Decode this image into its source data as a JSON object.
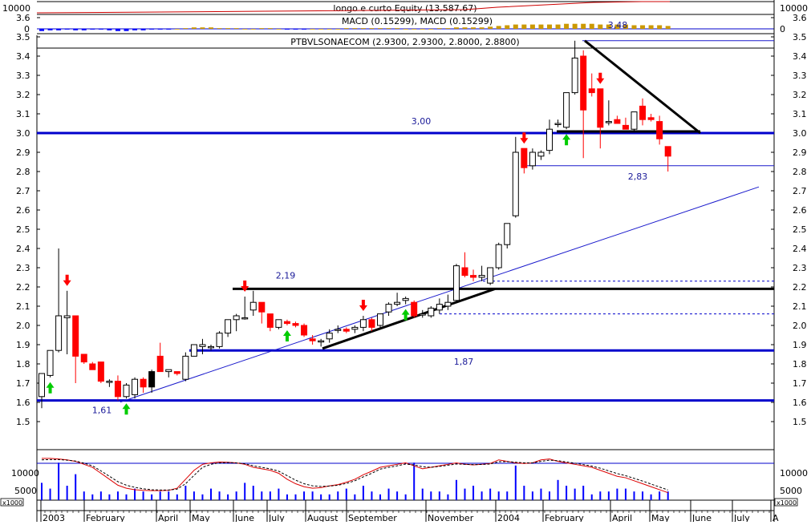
{
  "panels": {
    "equity_title": "longo e curto Equity (13,587.67)",
    "macd_title": "MACD (0.15299), MACD (0.15299)",
    "price_title": "PTBVLSONAECOM (2.9300, 2.9300, 2.8000, 2.8800)",
    "top_ticks": [
      "10000",
      "0"
    ],
    "volume_ticks": [
      "10000",
      "5000"
    ],
    "volume_unit": "x1000"
  },
  "colors": {
    "up_candle": "#ffffff",
    "down_candle": "#ff0000",
    "black_candle": "#000000",
    "trend_blue": "#0000cc",
    "thin_blue": "#1a1acc",
    "up_arrow": "#00cc00",
    "down_arrow": "#ff0000",
    "oscillator_red": "#dd0000",
    "signal_black": "#000000"
  },
  "chart_data": {
    "type": "candlestick",
    "title": "PTBVLSONAECOM (2.9300, 2.9300, 2.8000, 2.8800)",
    "ylim": [
      1.4,
      3.65
    ],
    "y_ticks": [
      "1.5",
      "1.6",
      "1.7",
      "1.8",
      "1.9",
      "2.0",
      "2.1",
      "2.2",
      "2.3",
      "2.4",
      "2.5",
      "2.6",
      "2.7",
      "2.8",
      "2.9",
      "3.0",
      "3.1",
      "3.2",
      "3.3",
      "3.4",
      "3.5",
      "3.6"
    ],
    "x_labels": [
      "2003",
      "February",
      "April",
      "May",
      "June",
      "July",
      "August",
      "September",
      "November",
      "2004",
      "February",
      "April",
      "May",
      "June",
      "July",
      "A"
    ],
    "candles": [
      {
        "o": 1.63,
        "h": 1.75,
        "l": 1.57,
        "c": 1.75
      },
      {
        "o": 1.74,
        "h": 1.87,
        "l": 1.73,
        "c": 1.87
      },
      {
        "o": 1.87,
        "h": 2.4,
        "l": 1.86,
        "c": 2.05
      },
      {
        "o": 2.04,
        "h": 2.18,
        "l": 1.85,
        "c": 2.05
      },
      {
        "o": 2.05,
        "h": 2.05,
        "l": 1.7,
        "c": 1.84
      },
      {
        "o": 1.85,
        "h": 1.85,
        "l": 1.8,
        "c": 1.81
      },
      {
        "o": 1.8,
        "h": 1.81,
        "l": 1.78,
        "c": 1.77
      },
      {
        "o": 1.81,
        "h": 1.81,
        "l": 1.7,
        "c": 1.71
      },
      {
        "o": 1.71,
        "h": 1.72,
        "l": 1.68,
        "c": 1.71
      },
      {
        "o": 1.71,
        "h": 1.74,
        "l": 1.61,
        "c": 1.63
      },
      {
        "o": 1.63,
        "h": 1.7,
        "l": 1.62,
        "c": 1.69
      },
      {
        "o": 1.64,
        "h": 1.73,
        "l": 1.62,
        "c": 1.72
      },
      {
        "o": 1.72,
        "h": 1.73,
        "l": 1.65,
        "c": 1.68
      },
      {
        "o": 1.68,
        "h": 1.77,
        "l": 1.65,
        "c": 1.76
      },
      {
        "o": 1.84,
        "h": 1.91,
        "l": 1.77,
        "c": 1.76
      },
      {
        "o": 1.76,
        "h": 1.77,
        "l": 1.73,
        "c": 1.77
      },
      {
        "o": 1.76,
        "h": 1.76,
        "l": 1.74,
        "c": 1.75
      },
      {
        "o": 1.72,
        "h": 1.86,
        "l": 1.71,
        "c": 1.84
      },
      {
        "o": 1.84,
        "h": 1.9,
        "l": 1.84,
        "c": 1.9
      },
      {
        "o": 1.89,
        "h": 1.93,
        "l": 1.85,
        "c": 1.9
      },
      {
        "o": 1.89,
        "h": 1.9,
        "l": 1.87,
        "c": 1.89
      },
      {
        "o": 1.89,
        "h": 1.97,
        "l": 1.88,
        "c": 1.96
      },
      {
        "o": 1.96,
        "h": 2.03,
        "l": 1.94,
        "c": 2.03
      },
      {
        "o": 2.03,
        "h": 2.06,
        "l": 1.97,
        "c": 2.05
      },
      {
        "o": 2.04,
        "h": 2.15,
        "l": 2.03,
        "c": 2.04
      },
      {
        "o": 2.08,
        "h": 2.18,
        "l": 2.05,
        "c": 2.12
      },
      {
        "o": 2.12,
        "h": 2.12,
        "l": 2.01,
        "c": 2.07
      },
      {
        "o": 2.06,
        "h": 2.06,
        "l": 1.97,
        "c": 1.99
      },
      {
        "o": 1.99,
        "h": 2.03,
        "l": 1.98,
        "c": 2.03
      },
      {
        "o": 2.02,
        "h": 2.03,
        "l": 2.0,
        "c": 2.01
      },
      {
        "o": 2.01,
        "h": 2.02,
        "l": 1.99,
        "c": 2.0
      },
      {
        "o": 2.0,
        "h": 2.01,
        "l": 1.94,
        "c": 1.95
      },
      {
        "o": 1.93,
        "h": 1.95,
        "l": 1.9,
        "c": 1.92
      },
      {
        "o": 1.92,
        "h": 1.93,
        "l": 1.89,
        "c": 1.92
      },
      {
        "o": 1.93,
        "h": 1.98,
        "l": 1.91,
        "c": 1.96
      },
      {
        "o": 1.98,
        "h": 2.0,
        "l": 1.96,
        "c": 1.98
      },
      {
        "o": 1.98,
        "h": 1.99,
        "l": 1.96,
        "c": 1.97
      },
      {
        "o": 1.98,
        "h": 2.0,
        "l": 1.96,
        "c": 1.99
      },
      {
        "o": 1.99,
        "h": 2.05,
        "l": 1.97,
        "c": 2.03
      },
      {
        "o": 2.03,
        "h": 2.04,
        "l": 1.97,
        "c": 1.99
      },
      {
        "o": 2.0,
        "h": 2.06,
        "l": 1.98,
        "c": 2.06
      },
      {
        "o": 2.07,
        "h": 2.12,
        "l": 2.05,
        "c": 2.11
      },
      {
        "o": 2.11,
        "h": 2.17,
        "l": 2.1,
        "c": 2.12
      },
      {
        "o": 2.13,
        "h": 2.15,
        "l": 2.11,
        "c": 2.14
      },
      {
        "o": 2.12,
        "h": 2.13,
        "l": 2.04,
        "c": 2.05
      },
      {
        "o": 2.06,
        "h": 2.08,
        "l": 2.04,
        "c": 2.06
      },
      {
        "o": 2.05,
        "h": 2.1,
        "l": 2.04,
        "c": 2.09
      },
      {
        "o": 2.08,
        "h": 2.14,
        "l": 2.06,
        "c": 2.11
      },
      {
        "o": 2.1,
        "h": 2.16,
        "l": 2.08,
        "c": 2.12
      },
      {
        "o": 2.13,
        "h": 2.32,
        "l": 2.12,
        "c": 2.31
      },
      {
        "o": 2.3,
        "h": 2.38,
        "l": 2.25,
        "c": 2.26
      },
      {
        "o": 2.26,
        "h": 2.29,
        "l": 2.23,
        "c": 2.25
      },
      {
        "o": 2.25,
        "h": 2.31,
        "l": 2.23,
        "c": 2.26
      },
      {
        "o": 2.22,
        "h": 2.28,
        "l": 2.21,
        "c": 2.3
      },
      {
        "o": 2.3,
        "h": 2.43,
        "l": 2.29,
        "c": 2.42
      },
      {
        "o": 2.42,
        "h": 2.53,
        "l": 2.4,
        "c": 2.53
      },
      {
        "o": 2.57,
        "h": 2.98,
        "l": 2.56,
        "c": 2.9
      },
      {
        "o": 2.92,
        "h": 2.92,
        "l": 2.79,
        "c": 2.82
      },
      {
        "o": 2.83,
        "h": 2.92,
        "l": 2.81,
        "c": 2.9
      },
      {
        "o": 2.88,
        "h": 2.91,
        "l": 2.86,
        "c": 2.9
      },
      {
        "o": 2.91,
        "h": 3.07,
        "l": 2.89,
        "c": 3.02
      },
      {
        "o": 3.05,
        "h": 3.07,
        "l": 3.03,
        "c": 3.05
      },
      {
        "o": 3.03,
        "h": 3.21,
        "l": 3.02,
        "c": 3.21
      },
      {
        "o": 3.21,
        "h": 3.48,
        "l": 3.2,
        "c": 3.39
      },
      {
        "o": 3.4,
        "h": 3.43,
        "l": 2.87,
        "c": 3.12
      },
      {
        "o": 3.23,
        "h": 3.31,
        "l": 3.19,
        "c": 3.21
      },
      {
        "o": 3.23,
        "h": 3.23,
        "l": 2.92,
        "c": 3.03
      },
      {
        "o": 3.06,
        "h": 3.17,
        "l": 3.04,
        "c": 3.06
      },
      {
        "o": 3.07,
        "h": 3.09,
        "l": 3.05,
        "c": 3.05
      },
      {
        "o": 3.04,
        "h": 3.08,
        "l": 3.03,
        "c": 3.02
      },
      {
        "o": 3.02,
        "h": 3.11,
        "l": 3.01,
        "c": 3.11
      },
      {
        "o": 3.14,
        "h": 3.18,
        "l": 3.04,
        "c": 3.07
      },
      {
        "o": 3.08,
        "h": 3.1,
        "l": 3.06,
        "c": 3.07
      },
      {
        "o": 3.06,
        "h": 3.09,
        "l": 2.94,
        "c": 2.97
      },
      {
        "o": 2.93,
        "h": 2.93,
        "l": 2.8,
        "c": 2.88
      }
    ],
    "dark_candles": [
      13
    ],
    "levels": [
      {
        "value": 3.0,
        "label": "3,00"
      },
      {
        "value": 1.61,
        "label": "1,61"
      },
      {
        "value": 1.87,
        "label": "1,87"
      },
      {
        "value": 2.19,
        "label": "2,19"
      },
      {
        "value": 3.48,
        "label": "3,48"
      },
      {
        "value": 2.83,
        "label": "2,83"
      }
    ],
    "up_arrow_bars": [
      1,
      10,
      29,
      43,
      62
    ],
    "down_arrow_bars": [
      3,
      24,
      38,
      57,
      66
    ],
    "volume": [
      6,
      4,
      13,
      5,
      9,
      3,
      2,
      3,
      2,
      3,
      2,
      4,
      3,
      2,
      3,
      3,
      2,
      5,
      3,
      2,
      4,
      3,
      2,
      3,
      6,
      5,
      3,
      3,
      4,
      2,
      2,
      3,
      3,
      2,
      2,
      3,
      4,
      2,
      5,
      3,
      2,
      4,
      3,
      2,
      13,
      4,
      3,
      3,
      2,
      7,
      4,
      5,
      3,
      4,
      3,
      3,
      12,
      5,
      3,
      4,
      3,
      7,
      5,
      4,
      5,
      2,
      3,
      3,
      4,
      4,
      3,
      3,
      2,
      3,
      3
    ],
    "volume_ylim": [
      0,
      15000
    ],
    "oscillator": [
      14000,
      14000,
      13800,
      13500,
      13000,
      12000,
      11000,
      9000,
      7000,
      5000,
      4000,
      3500,
      3300,
      3200,
      3200,
      3300,
      4000,
      7000,
      10000,
      12000,
      12500,
      12800,
      12700,
      12500,
      12000,
      11000,
      10500,
      10000,
      9000,
      7000,
      5500,
      4500,
      4000,
      4200,
      4800,
      5200,
      6000,
      7000,
      8500,
      9700,
      11000,
      11500,
      12000,
      12500,
      11500,
      10500,
      11000,
      11500,
      12000,
      12500,
      12000,
      11800,
      12000,
      12300,
      13500,
      13000,
      12500,
      12300,
      12500,
      13500,
      13800,
      13000,
      12500,
      12000,
      11500,
      11000,
      10000,
      9000,
      8000,
      7500,
      6500,
      5500,
      4500,
      3500,
      2500
    ],
    "signal": [
      13500,
      13600,
      13600,
      13400,
      13100,
      12400,
      11500,
      9800,
      8000,
      6200,
      5000,
      4300,
      3800,
      3500,
      3400,
      3400,
      3700,
      5500,
      8300,
      11000,
      12000,
      12500,
      12600,
      12500,
      12200,
      11500,
      11000,
      10500,
      9700,
      8200,
      6700,
      5500,
      4800,
      4600,
      4700,
      5000,
      5600,
      6500,
      7800,
      9000,
      10400,
      11000,
      11500,
      12100,
      11800,
      11200,
      11000,
      11300,
      11700,
      12100,
      12000,
      11900,
      11950,
      12100,
      12900,
      12900,
      12700,
      12500,
      12500,
      13000,
      13400,
      13200,
      12800,
      12400,
      11900,
      11400,
      10700,
      9800,
      8900,
      8200,
      7300,
      6400,
      5400,
      4400,
      3400
    ],
    "oscillator_ylim": [
      0,
      14500
    ]
  }
}
